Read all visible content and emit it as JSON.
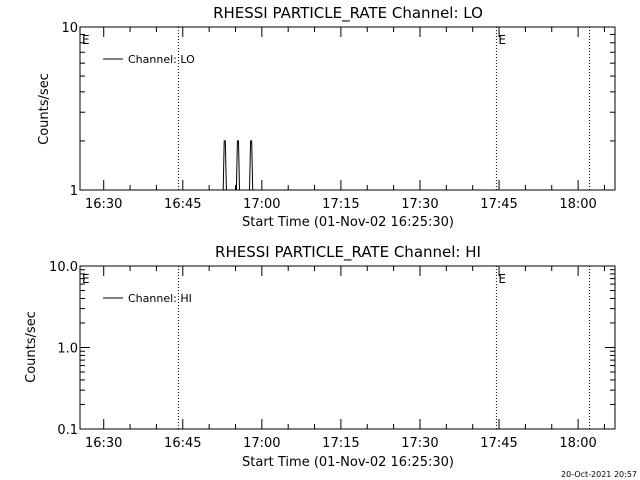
{
  "chart_data": [
    {
      "type": "line",
      "title": "RHESSI PARTICLE_RATE Channel: LO",
      "xlabel": "Start Time (01-Nov-02 16:25:30)",
      "ylabel": "Counts/sec",
      "y_scale": "log",
      "ylim": [
        1,
        10
      ],
      "y_ticks": [
        1,
        10
      ],
      "y_tick_labels": [
        "1",
        "10"
      ],
      "xlim": [
        "16:25:30",
        "18:07:00"
      ],
      "x_ticks": [
        "16:30",
        "16:45",
        "17:00",
        "17:15",
        "17:30",
        "17:45",
        "18:00"
      ],
      "eclipse_marks": [
        "16:44:10",
        "17:44:30",
        "18:02:10"
      ],
      "eclipse_label": "E",
      "legend": {
        "placement": "top-left",
        "entries": [
          "Channel: LO"
        ]
      },
      "series": [
        {
          "name": "Channel: LO",
          "x": [
            "16:52:40",
            "16:52:52",
            "16:53:04",
            "16:53:16",
            "16:55:10",
            "16:55:22",
            "16:55:34",
            "16:55:46",
            "16:57:40",
            "16:57:52",
            "16:58:04",
            "16:58:16"
          ],
          "y": [
            1,
            2,
            2,
            1,
            1,
            2,
            2,
            1,
            1,
            2,
            2,
            1
          ]
        }
      ]
    },
    {
      "type": "line",
      "title": "RHESSI PARTICLE_RATE Channel: HI",
      "xlabel": "Start Time (01-Nov-02 16:25:30)",
      "ylabel": "Counts/sec",
      "y_scale": "log",
      "ylim": [
        0.1,
        10
      ],
      "y_ticks": [
        0.1,
        1,
        10
      ],
      "y_tick_labels": [
        "0.1",
        "1.0",
        "10.0"
      ],
      "xlim": [
        "16:25:30",
        "18:07:00"
      ],
      "x_ticks": [
        "16:30",
        "16:45",
        "17:00",
        "17:15",
        "17:30",
        "17:45",
        "18:00"
      ],
      "eclipse_marks": [
        "16:44:10",
        "17:44:30",
        "18:02:10"
      ],
      "eclipse_label": "E",
      "legend": {
        "placement": "top-left",
        "entries": [
          "Channel: HI"
        ]
      },
      "series": [
        {
          "name": "Channel: HI",
          "x": [],
          "y": []
        }
      ]
    }
  ],
  "footer": {
    "timestamp": "20-Oct-2021 20:57"
  }
}
